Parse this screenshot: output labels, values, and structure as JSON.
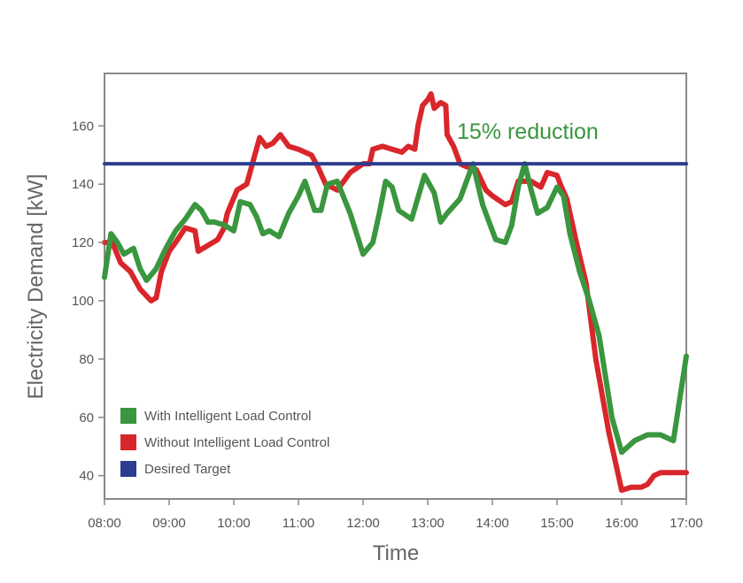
{
  "chart_data": {
    "type": "line",
    "xlabel": "Time",
    "ylabel": "Electricity Demand [kW]",
    "xlim": [
      8,
      17
    ],
    "ylim": [
      32,
      178
    ],
    "x_ticks": [
      {
        "v": 8,
        "label": "08:00"
      },
      {
        "v": 9,
        "label": "09:00"
      },
      {
        "v": 10,
        "label": "10:00"
      },
      {
        "v": 11,
        "label": "11:00"
      },
      {
        "v": 12,
        "label": "12:00"
      },
      {
        "v": 13,
        "label": "13:00"
      },
      {
        "v": 14,
        "label": "14:00"
      },
      {
        "v": 15,
        "label": "15:00"
      },
      {
        "v": 16,
        "label": "16:00"
      },
      {
        "v": 17,
        "label": "17:00"
      }
    ],
    "y_ticks": [
      {
        "v": 40,
        "label": "40"
      },
      {
        "v": 60,
        "label": "60"
      },
      {
        "v": 80,
        "label": "80"
      },
      {
        "v": 100,
        "label": "100"
      },
      {
        "v": 120,
        "label": "120"
      },
      {
        "v": 140,
        "label": "140"
      },
      {
        "v": 160,
        "label": "160"
      }
    ],
    "grid": false,
    "legend_position": "bottom-left",
    "annotation": "15% reduction",
    "series": [
      {
        "name": "Without Intelligent Load Control",
        "color": "#d9262b",
        "points": [
          [
            8.0,
            120
          ],
          [
            8.12,
            120
          ],
          [
            8.25,
            113
          ],
          [
            8.4,
            110
          ],
          [
            8.55,
            104
          ],
          [
            8.72,
            100
          ],
          [
            8.8,
            101
          ],
          [
            8.88,
            110
          ],
          [
            9.0,
            117
          ],
          [
            9.1,
            120
          ],
          [
            9.25,
            125
          ],
          [
            9.4,
            124
          ],
          [
            9.45,
            117
          ],
          [
            9.6,
            119
          ],
          [
            9.75,
            121
          ],
          [
            9.85,
            125
          ],
          [
            9.9,
            130
          ],
          [
            10.05,
            138
          ],
          [
            10.2,
            140
          ],
          [
            10.3,
            148
          ],
          [
            10.4,
            156
          ],
          [
            10.5,
            153
          ],
          [
            10.6,
            154
          ],
          [
            10.72,
            157
          ],
          [
            10.85,
            153
          ],
          [
            11.0,
            152
          ],
          [
            11.2,
            150
          ],
          [
            11.3,
            146
          ],
          [
            11.42,
            140
          ],
          [
            11.6,
            138
          ],
          [
            11.8,
            144
          ],
          [
            12.0,
            147
          ],
          [
            12.1,
            147
          ],
          [
            12.15,
            152
          ],
          [
            12.3,
            153
          ],
          [
            12.45,
            152
          ],
          [
            12.6,
            151
          ],
          [
            12.7,
            153
          ],
          [
            12.8,
            152
          ],
          [
            12.85,
            160
          ],
          [
            12.92,
            167
          ],
          [
            13.0,
            169
          ],
          [
            13.05,
            171
          ],
          [
            13.1,
            166
          ],
          [
            13.2,
            168
          ],
          [
            13.28,
            167
          ],
          [
            13.3,
            157
          ],
          [
            13.4,
            153
          ],
          [
            13.5,
            147
          ],
          [
            13.6,
            146
          ],
          [
            13.75,
            145
          ],
          [
            13.9,
            138
          ],
          [
            14.0,
            136
          ],
          [
            14.2,
            133
          ],
          [
            14.3,
            134
          ],
          [
            14.4,
            141
          ],
          [
            14.6,
            141
          ],
          [
            14.75,
            139
          ],
          [
            14.85,
            144
          ],
          [
            15.0,
            143
          ],
          [
            15.05,
            140
          ],
          [
            15.15,
            135
          ],
          [
            15.3,
            120
          ],
          [
            15.45,
            106
          ],
          [
            15.6,
            80
          ],
          [
            15.8,
            55
          ],
          [
            16.0,
            35
          ],
          [
            16.15,
            36
          ],
          [
            16.3,
            36
          ],
          [
            16.4,
            37
          ],
          [
            16.5,
            40
          ],
          [
            16.6,
            41
          ],
          [
            17.0,
            41
          ]
        ]
      },
      {
        "name": "With Intelligent Load Control",
        "color": "#3a963f",
        "points": [
          [
            8.0,
            108
          ],
          [
            8.1,
            123
          ],
          [
            8.2,
            120
          ],
          [
            8.3,
            116
          ],
          [
            8.45,
            118
          ],
          [
            8.55,
            111
          ],
          [
            8.65,
            107
          ],
          [
            8.8,
            111
          ],
          [
            8.95,
            118
          ],
          [
            9.1,
            124
          ],
          [
            9.25,
            128
          ],
          [
            9.4,
            133
          ],
          [
            9.5,
            131
          ],
          [
            9.6,
            127
          ],
          [
            9.7,
            127
          ],
          [
            9.85,
            126
          ],
          [
            10.0,
            124
          ],
          [
            10.1,
            134
          ],
          [
            10.25,
            133
          ],
          [
            10.35,
            129
          ],
          [
            10.45,
            123
          ],
          [
            10.55,
            124
          ],
          [
            10.7,
            122
          ],
          [
            10.85,
            130
          ],
          [
            11.0,
            136
          ],
          [
            11.1,
            141
          ],
          [
            11.25,
            131
          ],
          [
            11.35,
            131
          ],
          [
            11.45,
            140
          ],
          [
            11.6,
            141
          ],
          [
            11.8,
            130
          ],
          [
            12.0,
            116
          ],
          [
            12.15,
            120
          ],
          [
            12.25,
            130
          ],
          [
            12.35,
            141
          ],
          [
            12.45,
            139
          ],
          [
            12.55,
            131
          ],
          [
            12.75,
            128
          ],
          [
            12.95,
            143
          ],
          [
            13.1,
            137
          ],
          [
            13.2,
            127
          ],
          [
            13.3,
            130
          ],
          [
            13.5,
            135
          ],
          [
            13.7,
            147
          ],
          [
            13.85,
            133
          ],
          [
            13.95,
            127
          ],
          [
            14.05,
            121
          ],
          [
            14.2,
            120
          ],
          [
            14.3,
            126
          ],
          [
            14.4,
            139
          ],
          [
            14.5,
            147
          ],
          [
            14.6,
            138
          ],
          [
            14.7,
            130
          ],
          [
            14.85,
            132
          ],
          [
            15.0,
            139
          ],
          [
            15.1,
            136
          ],
          [
            15.2,
            123
          ],
          [
            15.35,
            110
          ],
          [
            15.5,
            100
          ],
          [
            15.65,
            88
          ],
          [
            15.85,
            60
          ],
          [
            16.0,
            48
          ],
          [
            16.2,
            52
          ],
          [
            16.4,
            54
          ],
          [
            16.6,
            54
          ],
          [
            16.8,
            52
          ],
          [
            17.0,
            81
          ]
        ]
      },
      {
        "name": "Desired Target",
        "color": "#2c3e8f",
        "points": [
          [
            8.0,
            147
          ],
          [
            17.0,
            147
          ]
        ]
      }
    ],
    "legend_order": [
      "With Intelligent Load Control",
      "Without Intelligent Load Control",
      "Desired Target"
    ]
  }
}
